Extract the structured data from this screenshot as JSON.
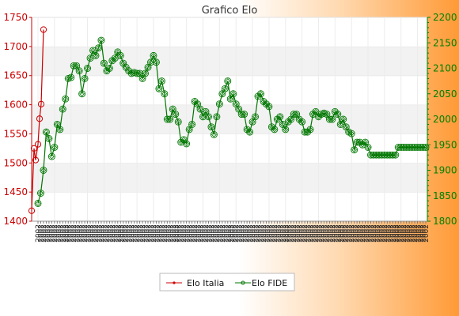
{
  "chart_data": {
    "type": "line",
    "title": "Grafico Elo",
    "xlabel": "",
    "ylabel": "",
    "grid": true,
    "legend_position": "bottom",
    "y_left": {
      "lim": [
        1400,
        1750
      ],
      "ticks": [
        "1400",
        "1450",
        "1500",
        "1550",
        "1600",
        "1650",
        "1700",
        "1750"
      ],
      "color": "#cc0000"
    },
    "y_right": {
      "lim": [
        1800,
        2200
      ],
      "ticks": [
        "1800",
        "1850",
        "1900",
        "1950",
        "2000",
        "2050",
        "2100",
        "2150",
        "2200"
      ],
      "color": "#008000"
    },
    "x_tick_label": "2002",
    "series": [
      {
        "name": "Elo Italia",
        "axis": "left",
        "color": "#cc0000",
        "marker": "dot",
        "values": [
          1418,
          1525,
          1505,
          1532,
          1576,
          1601,
          1729
        ]
      },
      {
        "name": "Elo FIDE",
        "axis": "right",
        "color": "#007700",
        "marker": "diamond",
        "values": [
          1835,
          1855,
          1900,
          1975,
          1962,
          1927,
          1945,
          1990,
          1980,
          2020,
          2040,
          2080,
          2082,
          2105,
          2105,
          2095,
          2050,
          2080,
          2100,
          2120,
          2135,
          2125,
          2140,
          2155,
          2110,
          2095,
          2100,
          2115,
          2120,
          2132,
          2125,
          2110,
          2102,
          2095,
          2090,
          2092,
          2090,
          2090,
          2080,
          2090,
          2102,
          2112,
          2125,
          2112,
          2060,
          2075,
          2050,
          2000,
          2000,
          2020,
          2010,
          1995,
          1955,
          1960,
          1952,
          1980,
          1990,
          2035,
          2030,
          2020,
          2005,
          2015,
          2005,
          1985,
          1970,
          2005,
          2030,
          2050,
          2060,
          2075,
          2040,
          2050,
          2030,
          2020,
          2010,
          2010,
          1980,
          1975,
          1995,
          2005,
          2045,
          2050,
          2035,
          2030,
          2025,
          1985,
          1980,
          2000,
          2005,
          1990,
          1980,
          1995,
          2000,
          2010,
          2010,
          2000,
          1995,
          1975,
          1975,
          1980,
          2010,
          2015,
          2005,
          2010,
          2012,
          2010,
          2000,
          2000,
          2015,
          2010,
          1990,
          2000,
          1985,
          1975,
          1972,
          1940,
          1955,
          1955,
          1950,
          1955,
          1945,
          1930,
          1930,
          1930,
          1930,
          1930,
          1930,
          1930,
          1930,
          1930,
          1930,
          1945,
          1945,
          1945,
          1945,
          1945,
          1945,
          1945,
          1945,
          1945,
          1945,
          1945
        ]
      }
    ]
  }
}
